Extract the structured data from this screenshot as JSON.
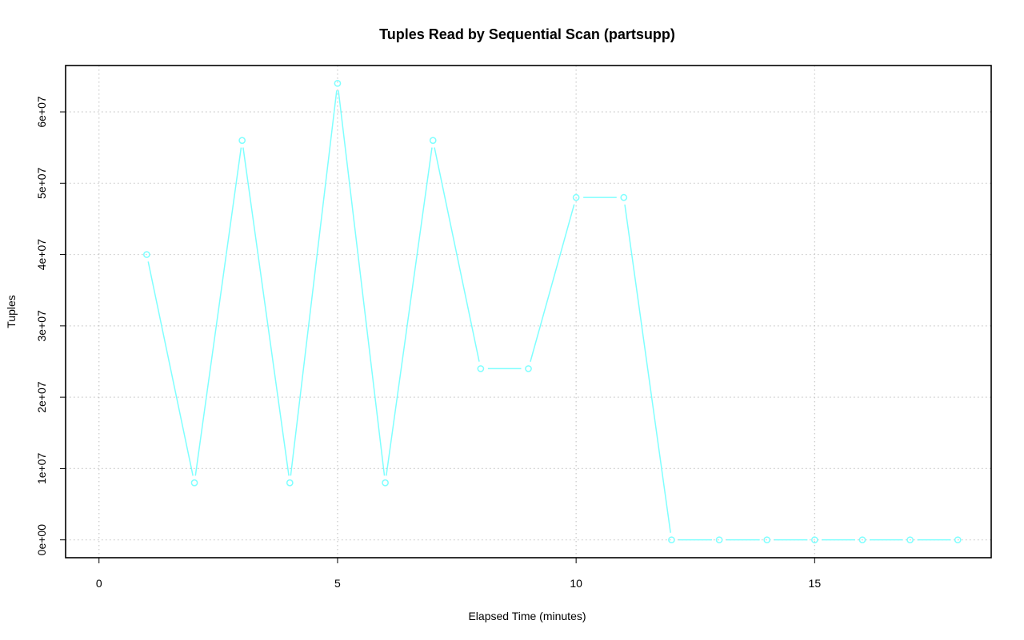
{
  "chart_data": {
    "type": "line",
    "title": "Tuples Read by Sequential Scan (partsupp)",
    "xlabel": "Elapsed Time (minutes)",
    "ylabel": "Tuples",
    "xlim": [
      -0.7,
      18.7
    ],
    "ylim": [
      -2500000,
      66500000
    ],
    "x_ticks": [
      0,
      5,
      10,
      15
    ],
    "x_tick_labels": [
      "0",
      "5",
      "10",
      "15"
    ],
    "y_ticks": [
      0,
      10000000,
      20000000,
      30000000,
      40000000,
      50000000,
      60000000
    ],
    "y_tick_labels": [
      "0e+00",
      "1e+07",
      "2e+07",
      "3e+07",
      "4e+07",
      "5e+07",
      "6e+07"
    ],
    "grid": true,
    "marker": "open-circle",
    "series": [
      {
        "color": "#7fffff",
        "x": [
          1,
          2,
          3,
          4,
          5,
          6,
          7,
          8,
          9,
          10,
          11,
          12,
          13,
          14,
          15,
          16,
          17,
          18
        ],
        "values": [
          40000000,
          8000000,
          56000000,
          8000000,
          64000000,
          8000000,
          56000000,
          24000000,
          24000000,
          48000000,
          48000000,
          0,
          0,
          0,
          0,
          0,
          0,
          0
        ]
      }
    ]
  }
}
